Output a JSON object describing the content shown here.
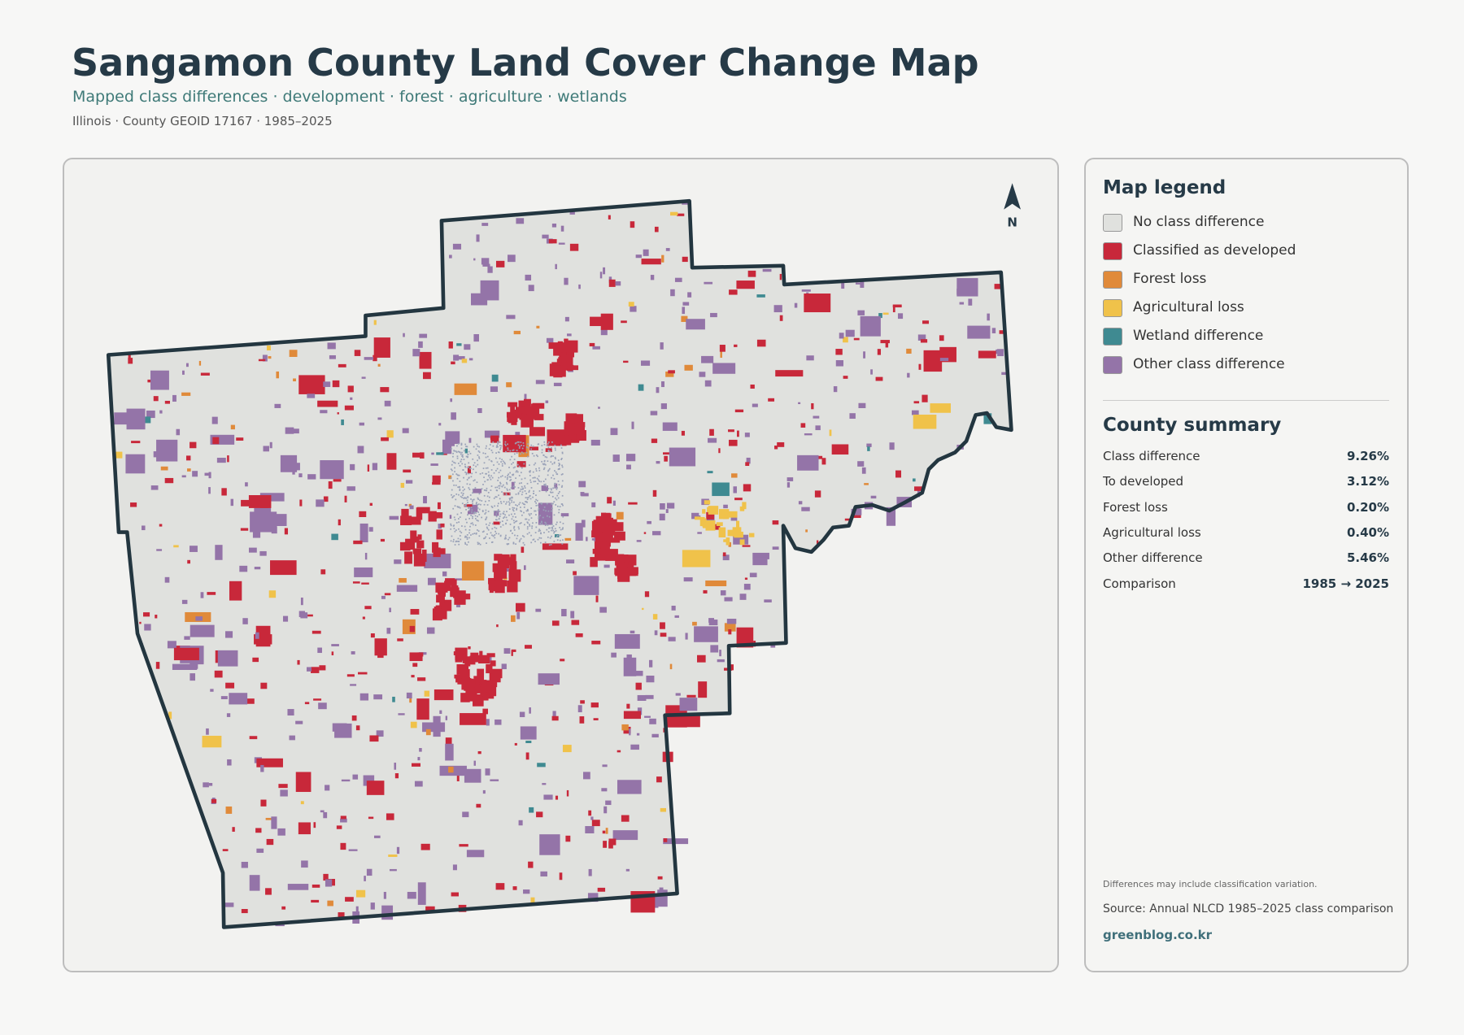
{
  "header": {
    "title": "Sangamon County Land Cover Change Map",
    "subtitle": "Mapped class differences · development · forest · agriculture · wetlands",
    "meta": "Illinois · County GEOID 17167 · 1985–2025"
  },
  "map": {
    "north_label": "N"
  },
  "legend": {
    "title": "Map legend",
    "items": [
      {
        "label": "No class difference",
        "color": "#e0e1de"
      },
      {
        "label": "Classified as developed",
        "color": "#c8283a"
      },
      {
        "label": "Forest loss",
        "color": "#e08a3a"
      },
      {
        "label": "Agricultural loss",
        "color": "#f0c24a"
      },
      {
        "label": "Wetland difference",
        "color": "#3f8a91"
      },
      {
        "label": "Other class difference",
        "color": "#9474a8"
      }
    ]
  },
  "summary": {
    "title": "County summary",
    "rows": [
      {
        "label": "Class difference",
        "value": "9.26%"
      },
      {
        "label": "To developed",
        "value": "3.12%"
      },
      {
        "label": "Forest loss",
        "value": "0.20%"
      },
      {
        "label": "Agricultural loss",
        "value": "0.40%"
      },
      {
        "label": "Other difference",
        "value": "5.46%"
      },
      {
        "label": "Comparison",
        "value": "1985 → 2025"
      }
    ]
  },
  "footer": {
    "note": "Differences may include classification variation.",
    "source": "Source: Annual NLCD 1985–2025 class comparison",
    "credit": "greenblog.co.kr"
  }
}
